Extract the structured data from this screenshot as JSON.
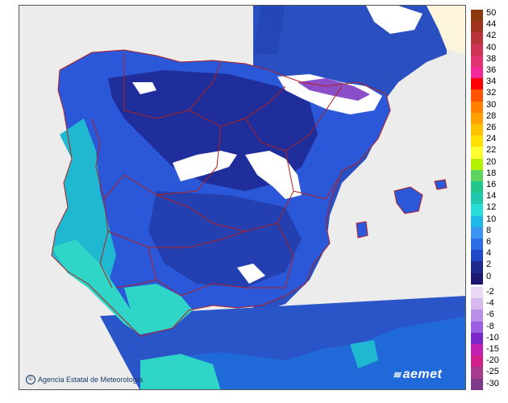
{
  "credit": "Agencia Estatal de Meteorología",
  "brand": "aemet",
  "legend": {
    "positive": [
      {
        "value": "50",
        "color": "#8b3a0e"
      },
      {
        "value": "44",
        "color": "#a03320"
      },
      {
        "value": "42",
        "color": "#b8333a"
      },
      {
        "value": "40",
        "color": "#cc3355"
      },
      {
        "value": "38",
        "color": "#e0336f"
      },
      {
        "value": "36",
        "color": "#f02898"
      },
      {
        "value": "34",
        "color": "#ff0000"
      },
      {
        "value": "32",
        "color": "#ff5500"
      },
      {
        "value": "30",
        "color": "#ff8000"
      },
      {
        "value": "28",
        "color": "#ffa000"
      },
      {
        "value": "26",
        "color": "#ffc000"
      },
      {
        "value": "24",
        "color": "#ffe000"
      },
      {
        "value": "22",
        "color": "#ffff33"
      },
      {
        "value": "20",
        "color": "#b5f000"
      },
      {
        "value": "18",
        "color": "#5fd35f"
      },
      {
        "value": "16",
        "color": "#22c58a"
      },
      {
        "value": "14",
        "color": "#20c8b0"
      },
      {
        "value": "12",
        "color": "#28dcd8"
      },
      {
        "value": "10",
        "color": "#1fb8e6"
      },
      {
        "value": "8",
        "color": "#3d93f0"
      },
      {
        "value": "6",
        "color": "#2d6ee6"
      },
      {
        "value": "4",
        "color": "#2148c8"
      },
      {
        "value": "2",
        "color": "#1e2a8e"
      },
      {
        "value": "0",
        "color": "#1c1870"
      }
    ],
    "negative": [
      {
        "value": "-2",
        "color": "#e8d8f5"
      },
      {
        "value": "-4",
        "color": "#d4b8ee"
      },
      {
        "value": "-6",
        "color": "#b890e8"
      },
      {
        "value": "-8",
        "color": "#9a60e0"
      },
      {
        "value": "-10",
        "color": "#7a28c8"
      },
      {
        "value": "-15",
        "color": "#c020b0"
      },
      {
        "value": "-20",
        "color": "#d0208a"
      },
      {
        "value": "-25",
        "color": "#a63a8c"
      },
      {
        "value": "-30",
        "color": "#7e3a8a"
      }
    ]
  },
  "map_colors": {
    "sea": "#2a4fc0",
    "sea_deep": "#2447b8",
    "land_outside": "#ffffff",
    "france": "#fdf5dc",
    "land_cold": "#2030a0",
    "land_mid": "#2a58d8",
    "land_warm": "#2e7ee8",
    "coast_teal": "#20b8d0",
    "coast_aqua": "#2fd6c8",
    "snow": "#ffffff",
    "peak": "#8a4ec8",
    "border": "#b02020"
  }
}
